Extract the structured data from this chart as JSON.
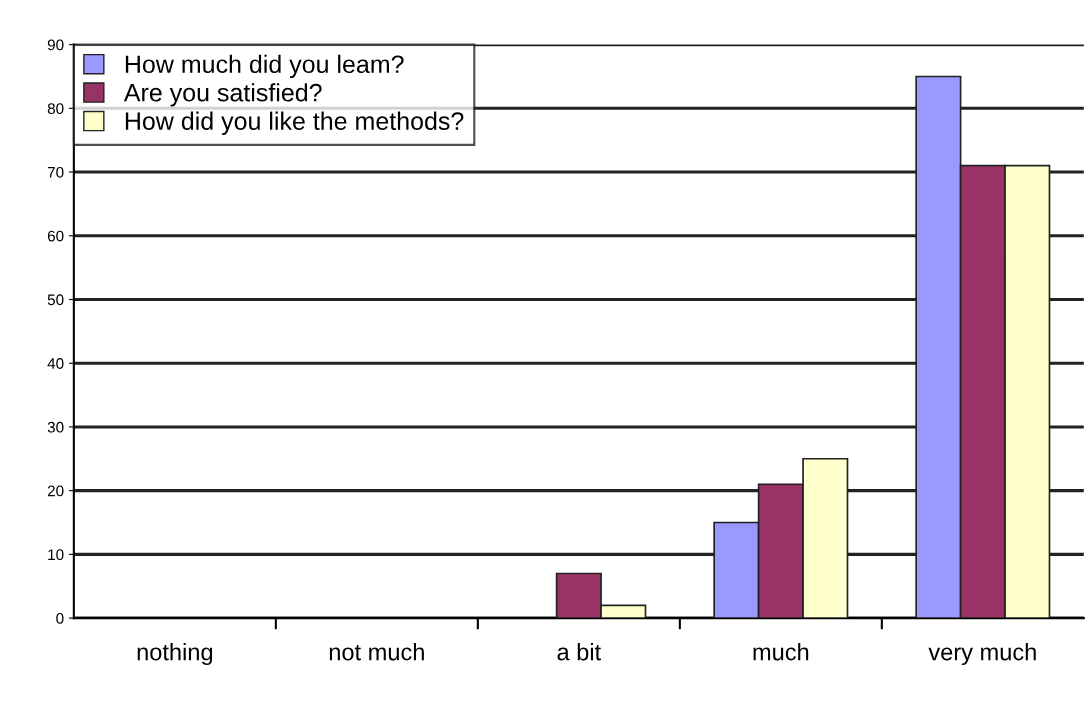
{
  "chart_data": {
    "type": "bar",
    "categories": [
      "nothing",
      "not much",
      "a bit",
      "much",
      "very much"
    ],
    "series": [
      {
        "name": "How much did you leam?",
        "color": "#9999ff",
        "values": [
          0,
          0,
          0,
          15,
          85
        ]
      },
      {
        "name": "Are you satisfied?",
        "color": "#993366",
        "values": [
          0,
          0,
          7,
          21,
          71
        ]
      },
      {
        "name": "How did you like the methods?",
        "color": "#ffffcc",
        "values": [
          0,
          0,
          2,
          25,
          71
        ]
      }
    ],
    "ylim": [
      0,
      90
    ],
    "yticks": [
      0,
      10,
      20,
      30,
      40,
      50,
      60,
      70,
      80,
      90
    ],
    "grid": "y",
    "legend": "top left"
  }
}
